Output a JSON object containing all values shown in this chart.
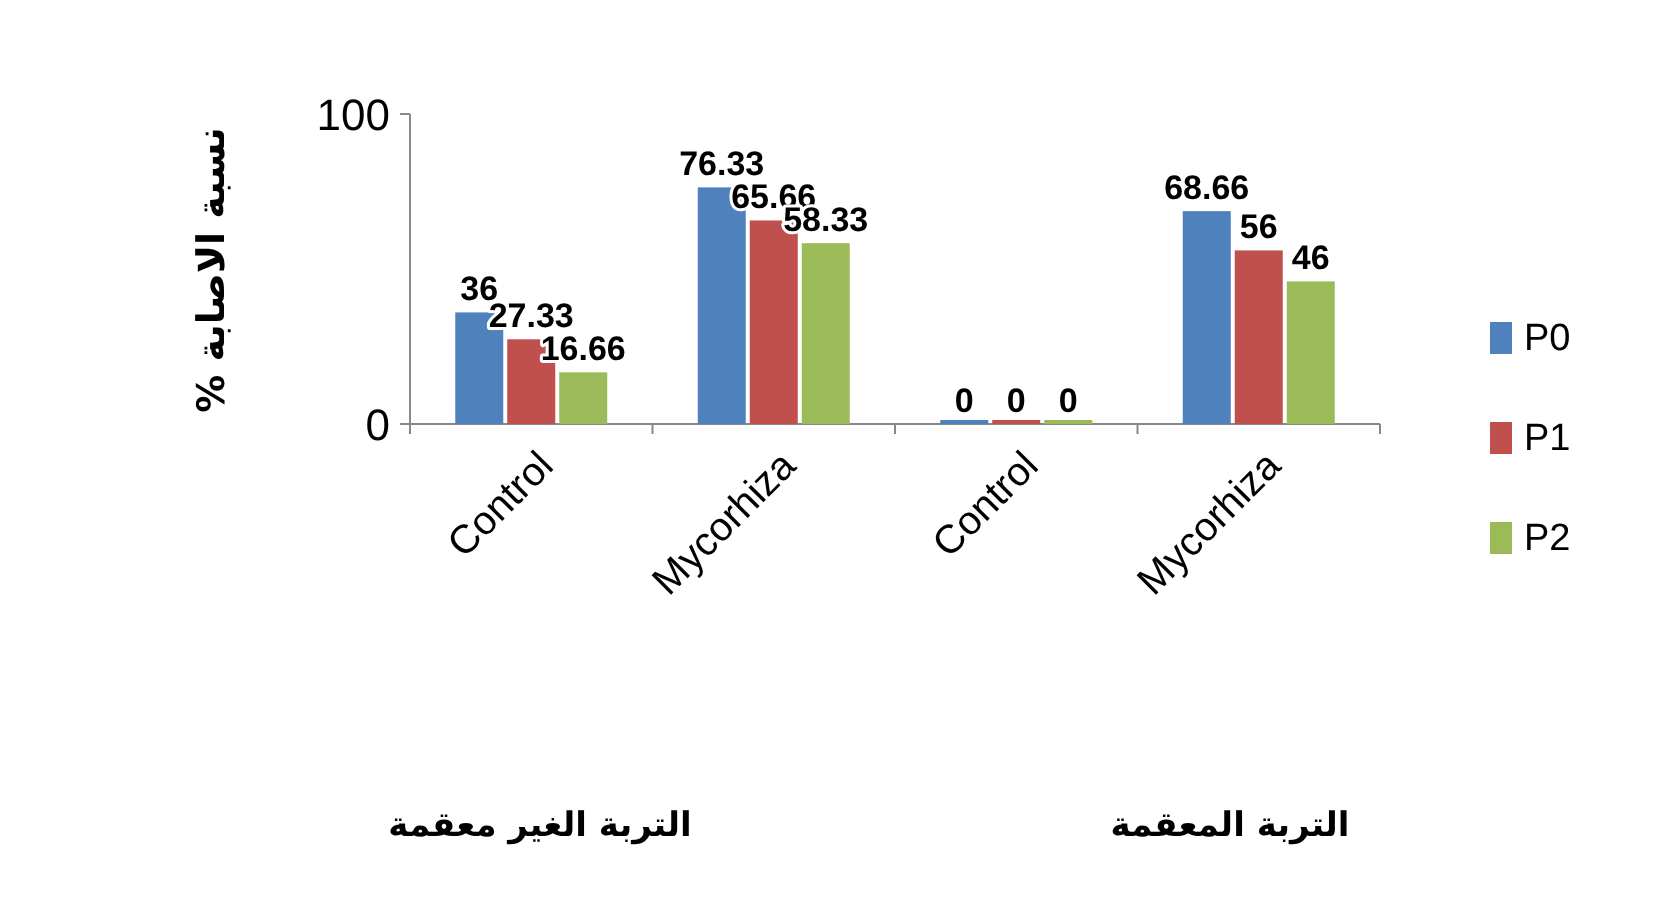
{
  "chart_data": {
    "type": "bar",
    "ylabel": "نسبة الاصابة %",
    "categories": [
      "Control",
      "Mycorhiza",
      "Control",
      "Mycorhiza"
    ],
    "series": [
      {
        "name": "P0",
        "color": "#4f81bd",
        "values": [
          36,
          76.33,
          0,
          68.66
        ]
      },
      {
        "name": "P1",
        "color": "#c0504d",
        "values": [
          27.33,
          65.66,
          0,
          56
        ]
      },
      {
        "name": "P2",
        "color": "#9bbb59",
        "values": [
          16.66,
          58.33,
          0,
          46
        ]
      }
    ],
    "ylim": [
      0,
      100
    ],
    "yticks": [
      0,
      100
    ],
    "data_labels": true,
    "legend": "right",
    "annotations": [
      "التربة الغير معقمة",
      "التربة المعقمة"
    ]
  }
}
